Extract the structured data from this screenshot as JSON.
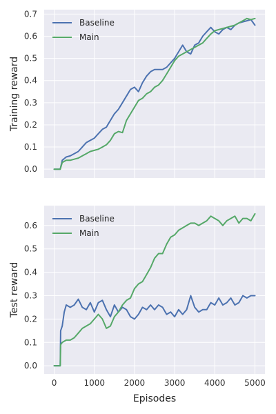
{
  "chart_data": [
    {
      "type": "line",
      "xlabel": "",
      "ylabel": "Training reward",
      "xlim": [
        -250,
        5250
      ],
      "ylim": [
        -0.04,
        0.72
      ],
      "xticks": [
        0,
        1000,
        2000,
        3000,
        4000,
        5000
      ],
      "xtick_labels": [
        "0",
        "1000",
        "2000",
        "3000",
        "4000",
        "5000"
      ],
      "show_xtick_labels": false,
      "yticks": [
        0.0,
        0.1,
        0.2,
        0.3,
        0.4,
        0.5,
        0.6,
        0.7
      ],
      "ytick_labels": [
        "0.0",
        "0.1",
        "0.2",
        "0.3",
        "0.4",
        "0.5",
        "0.6",
        "0.7"
      ],
      "grid": true,
      "legend_position": "top-left",
      "series": [
        {
          "name": "Baseline",
          "color": "#4c72b0",
          "x": [
            0,
            150,
            200,
            300,
            400,
            500,
            600,
            700,
            800,
            900,
            1000,
            1100,
            1200,
            1300,
            1400,
            1500,
            1600,
            1700,
            1800,
            1900,
            2000,
            2100,
            2200,
            2300,
            2400,
            2500,
            2600,
            2700,
            2800,
            2900,
            3000,
            3100,
            3200,
            3300,
            3400,
            3500,
            3600,
            3700,
            3800,
            3900,
            4000,
            4100,
            4200,
            4300,
            4400,
            4500,
            4600,
            4700,
            4800,
            4900,
            5000
          ],
          "y": [
            0.0,
            0.0,
            0.04,
            0.055,
            0.06,
            0.07,
            0.08,
            0.1,
            0.12,
            0.13,
            0.14,
            0.16,
            0.18,
            0.19,
            0.22,
            0.25,
            0.27,
            0.3,
            0.33,
            0.36,
            0.37,
            0.35,
            0.39,
            0.42,
            0.44,
            0.45,
            0.45,
            0.45,
            0.46,
            0.48,
            0.5,
            0.53,
            0.56,
            0.53,
            0.52,
            0.56,
            0.57,
            0.6,
            0.62,
            0.64,
            0.62,
            0.61,
            0.63,
            0.64,
            0.63,
            0.65,
            0.66,
            0.665,
            0.67,
            0.675,
            0.65
          ]
        },
        {
          "name": "Main",
          "color": "#55a868",
          "x": [
            0,
            150,
            200,
            300,
            400,
            500,
            600,
            700,
            800,
            900,
            1000,
            1100,
            1200,
            1300,
            1400,
            1500,
            1600,
            1700,
            1800,
            1900,
            2000,
            2100,
            2200,
            2300,
            2400,
            2500,
            2600,
            2700,
            2800,
            2900,
            3000,
            3100,
            3200,
            3300,
            3400,
            3500,
            3600,
            3700,
            3800,
            3900,
            4000,
            4100,
            4200,
            4300,
            4400,
            4500,
            4600,
            4700,
            4800,
            4900,
            5000
          ],
          "y": [
            0.0,
            0.0,
            0.03,
            0.04,
            0.04,
            0.045,
            0.05,
            0.06,
            0.07,
            0.08,
            0.085,
            0.09,
            0.1,
            0.11,
            0.13,
            0.16,
            0.17,
            0.165,
            0.22,
            0.25,
            0.28,
            0.31,
            0.32,
            0.34,
            0.35,
            0.37,
            0.38,
            0.4,
            0.43,
            0.46,
            0.49,
            0.51,
            0.52,
            0.53,
            0.54,
            0.55,
            0.56,
            0.57,
            0.59,
            0.61,
            0.625,
            0.63,
            0.635,
            0.64,
            0.645,
            0.65,
            0.66,
            0.67,
            0.68,
            0.675,
            0.68
          ]
        }
      ]
    },
    {
      "type": "line",
      "xlabel": "Episodes",
      "ylabel": "Test reward",
      "xlim": [
        -250,
        5250
      ],
      "ylim": [
        -0.035,
        0.685
      ],
      "xticks": [
        0,
        1000,
        2000,
        3000,
        4000,
        5000
      ],
      "xtick_labels": [
        "0",
        "1000",
        "2000",
        "3000",
        "4000",
        "5000"
      ],
      "show_xtick_labels": true,
      "yticks": [
        0.0,
        0.1,
        0.2,
        0.3,
        0.4,
        0.5,
        0.6
      ],
      "ytick_labels": [
        "0.0",
        "0.1",
        "0.2",
        "0.3",
        "0.4",
        "0.5",
        "0.6"
      ],
      "grid": true,
      "legend_position": "top-left",
      "series": [
        {
          "name": "Baseline",
          "color": "#4c72b0",
          "x": [
            0,
            150,
            160,
            200,
            250,
            300,
            400,
            500,
            600,
            700,
            800,
            900,
            1000,
            1100,
            1200,
            1300,
            1400,
            1500,
            1600,
            1700,
            1800,
            1900,
            2000,
            2100,
            2200,
            2300,
            2400,
            2500,
            2600,
            2700,
            2800,
            2900,
            3000,
            3100,
            3200,
            3300,
            3400,
            3500,
            3600,
            3700,
            3800,
            3900,
            4000,
            4100,
            4200,
            4300,
            4400,
            4500,
            4600,
            4700,
            4800,
            4900,
            5000
          ],
          "y": [
            0.0,
            0.0,
            0.15,
            0.17,
            0.23,
            0.26,
            0.25,
            0.26,
            0.285,
            0.25,
            0.24,
            0.27,
            0.23,
            0.27,
            0.28,
            0.24,
            0.21,
            0.26,
            0.23,
            0.25,
            0.24,
            0.21,
            0.2,
            0.22,
            0.25,
            0.24,
            0.26,
            0.24,
            0.26,
            0.25,
            0.22,
            0.23,
            0.21,
            0.24,
            0.22,
            0.24,
            0.3,
            0.25,
            0.23,
            0.24,
            0.24,
            0.27,
            0.26,
            0.29,
            0.26,
            0.27,
            0.29,
            0.26,
            0.27,
            0.3,
            0.29,
            0.3,
            0.3
          ]
        },
        {
          "name": "Main",
          "color": "#55a868",
          "x": [
            0,
            150,
            160,
            200,
            300,
            400,
            500,
            600,
            700,
            800,
            900,
            1000,
            1100,
            1200,
            1300,
            1400,
            1500,
            1600,
            1700,
            1800,
            1900,
            2000,
            2100,
            2200,
            2300,
            2400,
            2500,
            2600,
            2700,
            2800,
            2900,
            3000,
            3100,
            3200,
            3300,
            3400,
            3500,
            3600,
            3700,
            3800,
            3900,
            4000,
            4100,
            4200,
            4300,
            4400,
            4500,
            4600,
            4700,
            4800,
            4900,
            5000
          ],
          "y": [
            0.0,
            0.0,
            0.09,
            0.1,
            0.11,
            0.11,
            0.12,
            0.14,
            0.16,
            0.17,
            0.18,
            0.2,
            0.22,
            0.2,
            0.16,
            0.17,
            0.21,
            0.23,
            0.26,
            0.28,
            0.29,
            0.33,
            0.35,
            0.36,
            0.39,
            0.42,
            0.46,
            0.48,
            0.48,
            0.52,
            0.55,
            0.56,
            0.58,
            0.59,
            0.6,
            0.61,
            0.61,
            0.6,
            0.61,
            0.62,
            0.64,
            0.63,
            0.62,
            0.6,
            0.62,
            0.63,
            0.64,
            0.61,
            0.63,
            0.63,
            0.62,
            0.65
          ]
        }
      ]
    }
  ]
}
